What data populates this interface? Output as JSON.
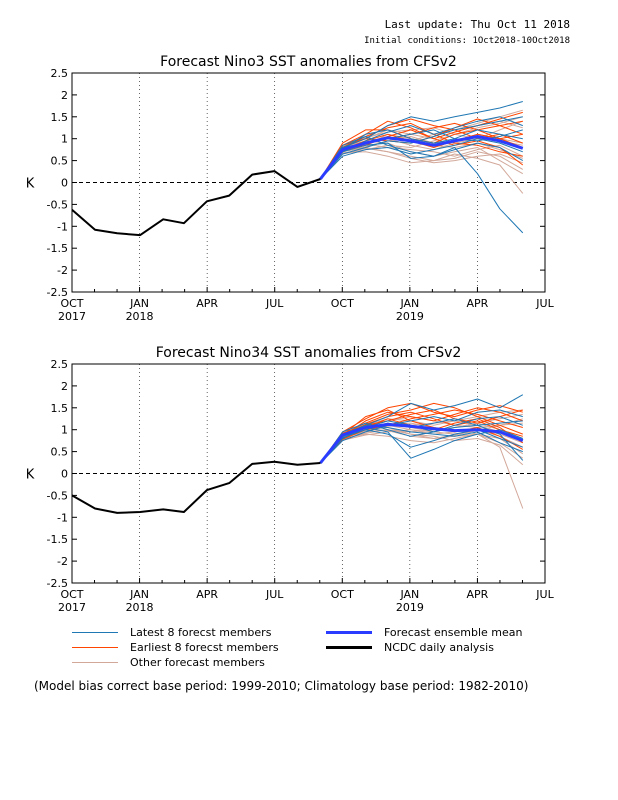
{
  "header": {
    "last_update": "Last update: Thu Oct 11 2018",
    "initial_conditions": "Initial conditions: 1Oct2018-10Oct2018"
  },
  "colors": {
    "latest": "#1f77b4",
    "earliest": "#ff4500",
    "other": "#d2a89a",
    "mean": "#2a3cff",
    "analysis": "#000000"
  },
  "x_ticks": [
    {
      "month": "OCT",
      "year": "2017",
      "t": 0
    },
    {
      "month": "JAN",
      "year": "2018",
      "t": 3
    },
    {
      "month": "APR",
      "year": "",
      "t": 6
    },
    {
      "month": "JUL",
      "year": "",
      "t": 9
    },
    {
      "month": "OCT",
      "year": "",
      "t": 12
    },
    {
      "month": "JAN",
      "year": "2019",
      "t": 15
    },
    {
      "month": "APR",
      "year": "",
      "t": 18
    },
    {
      "month": "JUL",
      "year": "",
      "t": 21
    }
  ],
  "y_ticks": [
    "2.5",
    "2",
    "1.5",
    "1",
    "0.5",
    "0",
    "-0.5",
    "-1",
    "-1.5",
    "-2",
    "-2.5"
  ],
  "chart_data": [
    {
      "type": "line",
      "title": "Forecast Nino3 SST anomalies from CFSv2",
      "ylabel": "K",
      "ylim": [
        -2.5,
        2.5
      ],
      "xlim": [
        "2017-10",
        "2019-07"
      ],
      "analysis": {
        "name": "NCDC daily analysis",
        "x": [
          "2017-10-01",
          "2017-11-01",
          "2017-12-01",
          "2018-01-01",
          "2018-02-01",
          "2018-03-01",
          "2018-04-01",
          "2018-05-01",
          "2018-06-01",
          "2018-07-01",
          "2018-08-01",
          "2018-09-01"
        ],
        "y": [
          -0.62,
          -1.08,
          -1.16,
          -1.2,
          -0.84,
          -0.93,
          -0.43,
          -0.3,
          0.18,
          0.26,
          -0.1,
          0.08
        ]
      },
      "ensemble_mean": {
        "name": "Forecast ensemble mean",
        "x": [
          "2018-09-01",
          "2018-10-01",
          "2018-11-01",
          "2018-12-01",
          "2019-01-01",
          "2019-02-01",
          "2019-03-01",
          "2019-04-01",
          "2019-05-01",
          "2019-06-01"
        ],
        "y": [
          0.08,
          0.75,
          0.9,
          1.02,
          0.95,
          0.85,
          0.95,
          1.05,
          0.95,
          0.78
        ]
      },
      "members_x": [
        "2018-09-01",
        "2018-10-01",
        "2018-11-01",
        "2018-12-01",
        "2019-01-01",
        "2019-02-01",
        "2019-03-01",
        "2019-04-01",
        "2019-05-01",
        "2019-06-01"
      ],
      "latest_members": [
        [
          0.08,
          0.8,
          1.0,
          1.3,
          1.5,
          1.4,
          1.5,
          1.6,
          1.7,
          1.85
        ],
        [
          0.08,
          0.7,
          0.85,
          0.9,
          0.55,
          0.6,
          0.8,
          0.2,
          -0.6,
          -1.15
        ],
        [
          0.08,
          0.75,
          1.1,
          1.2,
          1.0,
          0.9,
          1.0,
          1.2,
          1.1,
          1.0
        ],
        [
          0.08,
          0.65,
          0.8,
          0.95,
          0.9,
          1.05,
          1.2,
          1.3,
          1.4,
          1.5
        ],
        [
          0.08,
          0.85,
          1.05,
          0.85,
          0.7,
          0.6,
          0.75,
          0.9,
          0.8,
          0.5
        ],
        [
          0.08,
          0.7,
          0.95,
          1.15,
          1.3,
          1.1,
          1.25,
          1.4,
          1.5,
          1.3
        ],
        [
          0.08,
          0.8,
          0.9,
          1.0,
          1.1,
          1.2,
          1.0,
          0.95,
          1.05,
          1.2
        ],
        [
          0.08,
          0.6,
          0.75,
          0.8,
          0.65,
          0.75,
          0.85,
          1.0,
          0.9,
          0.7
        ]
      ],
      "earliest_members": [
        [
          0.08,
          0.85,
          1.1,
          1.4,
          1.25,
          1.0,
          1.15,
          1.3,
          1.45,
          1.6
        ],
        [
          0.08,
          0.8,
          1.0,
          1.3,
          1.45,
          1.3,
          1.2,
          1.0,
          1.1,
          0.9
        ],
        [
          0.08,
          0.9,
          1.2,
          1.2,
          1.0,
          0.9,
          1.1,
          1.2,
          1.3,
          1.4
        ],
        [
          0.08,
          0.75,
          0.95,
          1.1,
          0.95,
          0.8,
          0.95,
          1.1,
          1.0,
          0.8
        ],
        [
          0.08,
          0.7,
          0.9,
          1.0,
          1.1,
          1.25,
          1.35,
          1.2,
          1.0,
          1.1
        ],
        [
          0.08,
          0.8,
          1.05,
          1.25,
          1.35,
          1.1,
          0.9,
          0.85,
          0.7,
          0.6
        ],
        [
          0.08,
          0.85,
          1.0,
          0.95,
          0.9,
          1.05,
          1.25,
          1.45,
          1.3,
          1.1
        ],
        [
          0.08,
          0.75,
          0.85,
          1.05,
          1.2,
          1.0,
          0.85,
          0.95,
          0.8,
          0.4
        ]
      ],
      "other_members": [
        [
          0.08,
          0.7,
          0.8,
          0.7,
          0.6,
          0.5,
          0.55,
          0.7,
          0.6,
          0.3
        ],
        [
          0.08,
          0.75,
          0.9,
          1.0,
          0.85,
          0.75,
          0.9,
          1.0,
          1.2,
          1.4
        ],
        [
          0.08,
          0.65,
          0.75,
          0.85,
          0.8,
          0.95,
          1.1,
          1.25,
          1.35,
          1.5
        ],
        [
          0.08,
          0.8,
          0.95,
          0.9,
          0.7,
          0.6,
          0.7,
          0.8,
          0.5,
          0.2
        ],
        [
          0.08,
          0.72,
          0.85,
          1.1,
          1.0,
          0.85,
          0.8,
          0.9,
          0.75,
          0.55
        ],
        [
          0.08,
          0.68,
          0.7,
          0.6,
          0.45,
          0.5,
          0.65,
          0.55,
          0.4,
          -0.25
        ],
        [
          0.08,
          0.78,
          1.0,
          1.2,
          1.1,
          1.0,
          1.15,
          1.3,
          1.4,
          1.25
        ],
        [
          0.08,
          0.7,
          0.82,
          0.95,
          1.05,
          0.9,
          0.95,
          1.1,
          1.0,
          0.9
        ],
        [
          0.08,
          0.74,
          0.88,
          0.8,
          0.75,
          0.7,
          0.6,
          0.75,
          0.85,
          0.6
        ],
        [
          0.08,
          0.82,
          1.02,
          1.15,
          1.2,
          1.25,
          1.1,
          1.0,
          0.95,
          0.85
        ],
        [
          0.08,
          0.66,
          0.78,
          0.7,
          0.55,
          0.45,
          0.5,
          0.6,
          0.65,
          0.45
        ],
        [
          0.08,
          0.76,
          0.92,
          1.05,
          0.95,
          1.1,
          1.2,
          1.35,
          1.5,
          1.65
        ]
      ]
    },
    {
      "type": "line",
      "title": "Forecast Nino34 SST anomalies from CFSv2",
      "ylabel": "K",
      "ylim": [
        -2.5,
        2.5
      ],
      "xlim": [
        "2017-10",
        "2019-07"
      ],
      "analysis": {
        "name": "NCDC daily analysis",
        "x": [
          "2017-10-01",
          "2017-11-01",
          "2017-12-01",
          "2018-01-01",
          "2018-02-01",
          "2018-03-01",
          "2018-04-01",
          "2018-05-01",
          "2018-06-01",
          "2018-07-01",
          "2018-08-01",
          "2018-09-01"
        ],
        "y": [
          -0.5,
          -0.8,
          -0.9,
          -0.88,
          -0.82,
          -0.88,
          -0.38,
          -0.22,
          0.22,
          0.27,
          0.2,
          0.24
        ]
      },
      "ensemble_mean": {
        "name": "Forecast ensemble mean",
        "x": [
          "2018-09-01",
          "2018-10-01",
          "2018-11-01",
          "2018-12-01",
          "2019-01-01",
          "2019-02-01",
          "2019-03-01",
          "2019-04-01",
          "2019-05-01",
          "2019-06-01"
        ],
        "y": [
          0.24,
          0.88,
          1.05,
          1.12,
          1.08,
          1.02,
          0.98,
          1.0,
          0.95,
          0.75
        ]
      },
      "members_x": [
        "2018-09-01",
        "2018-10-01",
        "2018-11-01",
        "2018-12-01",
        "2019-01-01",
        "2019-02-01",
        "2019-03-01",
        "2019-04-01",
        "2019-05-01",
        "2019-06-01"
      ],
      "latest_members": [
        [
          0.24,
          0.9,
          1.1,
          1.3,
          1.6,
          1.45,
          1.55,
          1.7,
          1.5,
          1.8
        ],
        [
          0.24,
          0.85,
          1.0,
          0.9,
          0.6,
          0.75,
          0.9,
          1.0,
          0.8,
          0.6
        ],
        [
          0.24,
          0.8,
          1.05,
          1.2,
          1.1,
          0.95,
          1.1,
          1.25,
          1.3,
          1.1
        ],
        [
          0.24,
          0.95,
          1.15,
          1.0,
          0.85,
          0.95,
          1.05,
          1.1,
          0.9,
          0.3
        ],
        [
          0.24,
          0.75,
          0.95,
          1.1,
          1.2,
          1.3,
          1.2,
          1.4,
          1.45,
          1.3
        ],
        [
          0.24,
          0.9,
          1.05,
          0.95,
          0.35,
          0.55,
          0.75,
          0.9,
          1.0,
          0.8
        ],
        [
          0.24,
          0.82,
          1.0,
          1.15,
          1.05,
          1.15,
          1.25,
          1.1,
          1.15,
          1.2
        ],
        [
          0.24,
          0.88,
          1.1,
          1.05,
          0.95,
          0.9,
          0.85,
          0.95,
          0.7,
          0.5
        ]
      ],
      "earliest_members": [
        [
          0.24,
          0.95,
          1.25,
          1.5,
          1.6,
          1.4,
          1.3,
          1.45,
          1.55,
          1.4
        ],
        [
          0.24,
          0.9,
          1.15,
          1.35,
          1.45,
          1.6,
          1.5,
          1.3,
          1.1,
          0.9
        ],
        [
          0.24,
          0.85,
          1.2,
          1.4,
          1.3,
          1.2,
          1.35,
          1.5,
          1.4,
          1.2
        ],
        [
          0.24,
          0.8,
          1.05,
          1.25,
          1.1,
          1.0,
          1.15,
          1.25,
          1.05,
          0.7
        ],
        [
          0.24,
          0.92,
          1.1,
          1.2,
          1.35,
          1.45,
          1.25,
          1.15,
          1.3,
          1.45
        ],
        [
          0.24,
          0.88,
          1.3,
          1.45,
          1.2,
          1.05,
          0.95,
          1.05,
          0.85,
          0.55
        ],
        [
          0.24,
          0.78,
          1.0,
          1.1,
          1.25,
          1.35,
          1.45,
          1.35,
          1.2,
          1.05
        ],
        [
          0.24,
          0.84,
          1.12,
          1.3,
          1.4,
          1.25,
          1.1,
          1.2,
          1.0,
          0.85
        ]
      ],
      "other_members": [
        [
          0.24,
          0.82,
          0.95,
          1.0,
          0.9,
          0.8,
          0.85,
          0.9,
          0.6,
          -0.8
        ],
        [
          0.24,
          0.86,
          1.05,
          1.15,
          1.05,
          0.95,
          1.05,
          1.15,
          1.25,
          1.35
        ],
        [
          0.24,
          0.8,
          0.9,
          0.85,
          0.75,
          0.7,
          0.8,
          0.9,
          0.7,
          0.35
        ],
        [
          0.24,
          0.9,
          1.1,
          1.25,
          1.2,
          1.1,
          1.2,
          1.3,
          1.4,
          1.45
        ],
        [
          0.24,
          0.76,
          0.88,
          0.95,
          1.0,
          0.9,
          0.95,
          1.0,
          0.85,
          0.6
        ],
        [
          0.24,
          0.84,
          1.0,
          1.05,
          0.9,
          0.85,
          0.75,
          0.8,
          0.65,
          0.2
        ],
        [
          0.24,
          0.88,
          1.08,
          1.2,
          1.3,
          1.2,
          1.1,
          1.05,
          1.1,
          1.15
        ],
        [
          0.24,
          0.78,
          0.92,
          1.0,
          0.95,
          1.0,
          1.05,
          1.15,
          1.0,
          0.8
        ],
        [
          0.24,
          0.92,
          1.12,
          1.1,
          1.0,
          0.95,
          0.9,
          1.0,
          0.9,
          0.7
        ],
        [
          0.24,
          0.8,
          0.98,
          1.12,
          1.15,
          1.05,
          1.0,
          0.9,
          0.8,
          0.45
        ],
        [
          0.24,
          0.86,
          1.02,
          0.98,
          0.85,
          0.8,
          0.88,
          0.98,
          1.1,
          1.25
        ],
        [
          0.24,
          0.82,
          0.96,
          1.08,
          1.1,
          1.15,
          1.2,
          1.1,
          0.95,
          0.75
        ]
      ]
    }
  ],
  "legend": {
    "latest": "Latest 8 forecst members",
    "earliest": "Earliest 8 forecst members",
    "other": "Other forecast members",
    "mean": "Forecast ensemble mean",
    "analysis": "NCDC daily analysis"
  },
  "footnote": "(Model bias correct base period: 1999-2010; Climatology base period: 1982-2010)"
}
